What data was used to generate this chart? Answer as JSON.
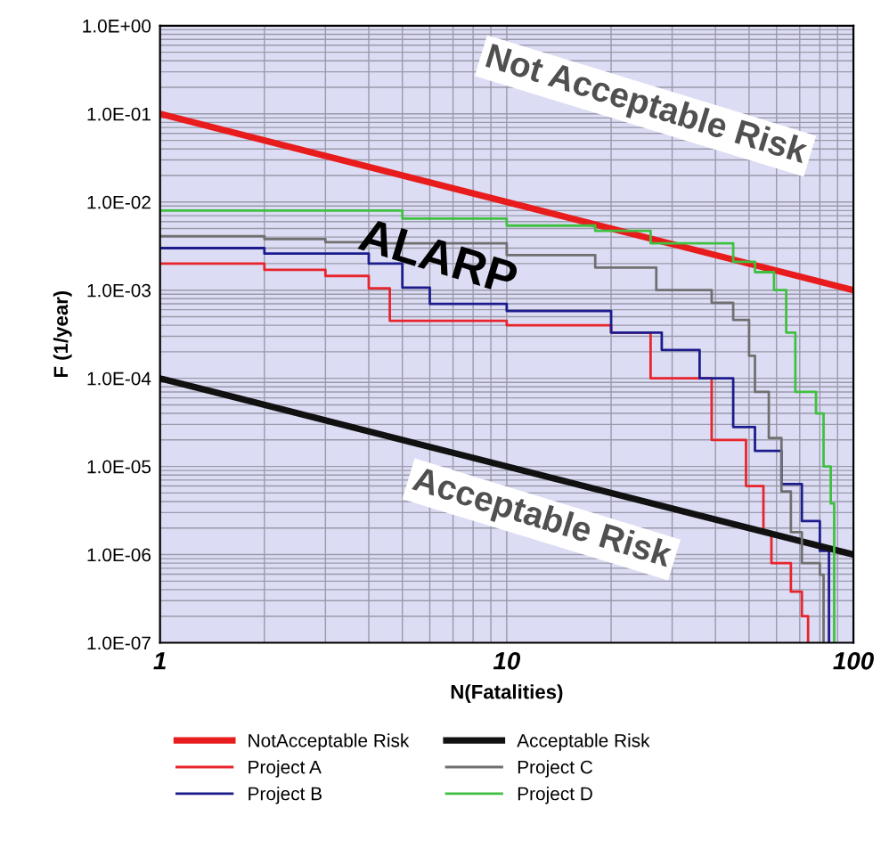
{
  "chart_data": {
    "type": "step",
    "xlabel": "N(Fatalities)",
    "ylabel": "F (1/year)",
    "log": "xy",
    "grid": true,
    "legend": "bottom",
    "xlim": [
      1,
      100
    ],
    "xticks": [
      1,
      10,
      100
    ],
    "ylim": [
      1e-07,
      1
    ],
    "yticks": [
      {
        "value": 1e-07,
        "label": "1.0E-07"
      },
      {
        "value": 1e-06,
        "label": "1.0E-06"
      },
      {
        "value": 1e-05,
        "label": "1.0E-05"
      },
      {
        "value": 0.0001,
        "label": "1.0E-04"
      },
      {
        "value": 0.001,
        "label": "1.0E-03"
      },
      {
        "value": 0.01,
        "label": "1.0E-02"
      },
      {
        "value": 0.1,
        "label": "1.0E-01"
      },
      {
        "value": 1,
        "label": "1.0E+00"
      }
    ],
    "annotations": [
      "Not Acceptable Risk",
      "ALARP",
      "Acceptable Risk"
    ],
    "series": [
      {
        "name": "NotAcceptable Risk",
        "type": "line",
        "color": "#e81c1c",
        "x": [
          1,
          100
        ],
        "values": [
          0.1,
          0.001
        ]
      },
      {
        "name": "Project A",
        "color": "#e8242c",
        "x": [
          1,
          2,
          3,
          4,
          4.6,
          10,
          20,
          26,
          39,
          49,
          55,
          58,
          66,
          71,
          74
        ],
        "values": [
          0.002,
          0.0017,
          0.00145,
          0.00105,
          0.00045,
          0.0004,
          0.00033,
          0.0001,
          2e-05,
          6e-06,
          1.8e-06,
          8e-07,
          3.8e-07,
          2e-07,
          1e-07
        ]
      },
      {
        "name": "Project B",
        "color": "#1c1c8c",
        "x": [
          1,
          2,
          4,
          5,
          6,
          10,
          20,
          28,
          36,
          45,
          52,
          62,
          71,
          80,
          85
        ],
        "values": [
          0.003,
          0.0026,
          0.002,
          0.00107,
          0.0007,
          0.00058,
          0.00033,
          0.00021,
          0.0001,
          2.8e-05,
          1.5e-05,
          6.3e-06,
          2.4e-06,
          1.1e-06,
          1e-07
        ]
      },
      {
        "name": "Acceptable Risk",
        "type": "line",
        "color": "#111111",
        "x": [
          1,
          100
        ],
        "values": [
          0.0001,
          1e-06
        ]
      },
      {
        "name": "Project C",
        "color": "#707070",
        "x": [
          1,
          2,
          3,
          4,
          10,
          18,
          27,
          39,
          45,
          50,
          52,
          57,
          62,
          66,
          71,
          80,
          82
        ],
        "values": [
          0.0041,
          0.0038,
          0.0035,
          0.0034,
          0.0025,
          0.0018,
          0.001,
          0.00072,
          0.00046,
          0.00018,
          7e-05,
          2.1e-05,
          5.2e-06,
          1.8e-06,
          8e-07,
          5.9e-07,
          1e-07
        ]
      },
      {
        "name": "Project D",
        "color": "#40c040",
        "x": [
          1,
          5,
          10,
          18,
          26,
          45,
          52,
          59,
          64,
          68,
          78,
          82,
          86,
          88
        ],
        "values": [
          0.008,
          0.0065,
          0.0054,
          0.0047,
          0.0034,
          0.0021,
          0.0016,
          0.001,
          0.00033,
          7e-05,
          4e-05,
          1e-05,
          3.8e-06,
          1e-07
        ]
      }
    ]
  }
}
